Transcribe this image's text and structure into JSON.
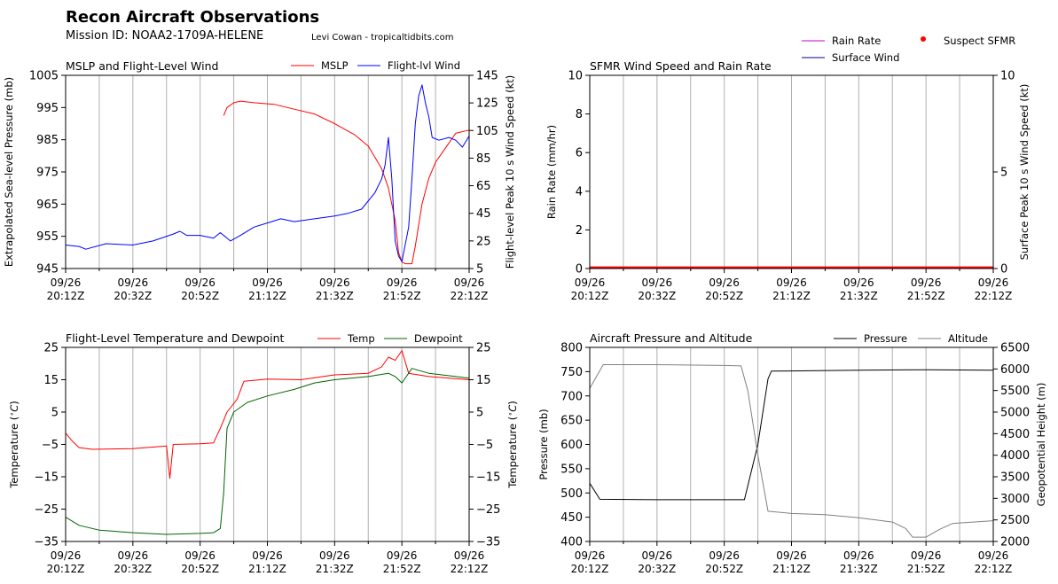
{
  "header": {
    "title": "Recon Aircraft Observations",
    "mission": "Mission ID: NOAA2-1709A-HELENE",
    "credit": "Levi Cowan - tropicaltidbits.com"
  },
  "colors": {
    "mslp": "#ff0000",
    "wind": "#0000ff",
    "temp": "#ff0000",
    "dewpoint": "#006400",
    "rain": "#c000c0",
    "surface_wind": "#00008b",
    "suspect": "#ff0000",
    "pressure": "#000000",
    "altitude": "#808080",
    "grid": "#b0b0b0"
  },
  "x_ticks": [
    [
      "09/26",
      "20:12Z"
    ],
    [
      "09/26",
      "20:32Z"
    ],
    [
      "09/26",
      "20:52Z"
    ],
    [
      "09/26",
      "21:12Z"
    ],
    [
      "09/26",
      "21:32Z"
    ],
    [
      "09/26",
      "21:52Z"
    ],
    [
      "09/26",
      "22:12Z"
    ]
  ],
  "chart_data": [
    {
      "type": "line",
      "title": "MSLP and Flight-Level Wind",
      "xlabel": "",
      "ylabel": "Extrapolated Sea-level Pressure (mb)",
      "ylabel_right": "Flight-level Peak 10 s Wind Speed (kt)",
      "x_range": [
        "09/26 20:12Z",
        "09/26 22:12Z"
      ],
      "ylim": [
        945,
        1005
      ],
      "yticks": [
        "945",
        "955",
        "965",
        "975",
        "985",
        "995",
        "1005"
      ],
      "ylim_right": [
        5,
        145
      ],
      "yticks_right": [
        "5",
        "25",
        "45",
        "65",
        "85",
        "105",
        "125",
        "145"
      ],
      "legend": [
        "MSLP",
        "Flight-lvl Wind"
      ],
      "legend_position": "top-right",
      "grid": "vertical",
      "series": [
        {
          "name": "MSLP",
          "axis": "left",
          "color": "#ff0000",
          "points": [
            [
              "09/26 20:59Z",
              992.5
            ],
            [
              "09/26 21:00Z",
              995
            ],
            [
              "09/26 21:02Z",
              996.5
            ],
            [
              "09/26 21:04Z",
              997
            ],
            [
              "09/26 21:08Z",
              996.5
            ],
            [
              "09/26 21:14Z",
              996
            ],
            [
              "09/26 21:20Z",
              994.5
            ],
            [
              "09/26 21:26Z",
              993
            ],
            [
              "09/26 21:32Z",
              990
            ],
            [
              "09/26 21:38Z",
              986.5
            ],
            [
              "09/26 21:42Z",
              983
            ],
            [
              "09/26 21:46Z",
              976
            ],
            [
              "09/26 21:48Z",
              970
            ],
            [
              "09/26 21:50Z",
              960
            ],
            [
              "09/26 21:51Z",
              950
            ],
            [
              "09/26 21:52Z",
              947
            ],
            [
              "09/26 21:53Z",
              946.5
            ],
            [
              "09/26 21:55Z",
              946.5
            ],
            [
              "09/26 21:56Z",
              952
            ],
            [
              "09/26 21:58Z",
              965
            ],
            [
              "09/26 22:00Z",
              973
            ],
            [
              "09/26 22:02Z",
              978
            ],
            [
              "09/26 22:04Z",
              981
            ],
            [
              "09/26 22:06Z",
              984
            ],
            [
              "09/26 22:08Z",
              987
            ],
            [
              "09/26 22:12Z",
              988
            ]
          ]
        },
        {
          "name": "Flight-lvl Wind",
          "axis": "right",
          "color": "#0000ff",
          "points": [
            [
              "09/26 20:12Z",
              22
            ],
            [
              "09/26 20:16Z",
              21
            ],
            [
              "09/26 20:18Z",
              19
            ],
            [
              "09/26 20:24Z",
              23
            ],
            [
              "09/26 20:32Z",
              22
            ],
            [
              "09/26 20:38Z",
              25
            ],
            [
              "09/26 20:44Z",
              30
            ],
            [
              "09/26 20:46Z",
              32
            ],
            [
              "09/26 20:48Z",
              29
            ],
            [
              "09/26 20:52Z",
              29
            ],
            [
              "09/26 20:56Z",
              27
            ],
            [
              "09/26 20:58Z",
              31
            ],
            [
              "09/26 21:01Z",
              25
            ],
            [
              "09/26 21:04Z",
              29
            ],
            [
              "09/26 21:08Z",
              35
            ],
            [
              "09/26 21:12Z",
              38
            ],
            [
              "09/26 21:16Z",
              41
            ],
            [
              "09/26 21:20Z",
              39
            ],
            [
              "09/26 21:26Z",
              41
            ],
            [
              "09/26 21:32Z",
              43
            ],
            [
              "09/26 21:36Z",
              45
            ],
            [
              "09/26 21:40Z",
              48
            ],
            [
              "09/26 21:44Z",
              60
            ],
            [
              "09/26 21:46Z",
              70
            ],
            [
              "09/26 21:47Z",
              80
            ],
            [
              "09/26 21:48Z",
              100
            ],
            [
              "09/26 21:49Z",
              70
            ],
            [
              "09/26 21:50Z",
              25
            ],
            [
              "09/26 21:51Z",
              14
            ],
            [
              "09/26 21:52Z",
              10
            ],
            [
              "09/26 21:54Z",
              35
            ],
            [
              "09/26 21:55Z",
              70
            ],
            [
              "09/26 21:56Z",
              110
            ],
            [
              "09/26 21:57Z",
              130
            ],
            [
              "09/26 21:58Z",
              138
            ],
            [
              "09/26 21:59Z",
              125
            ],
            [
              "09/26 22:00Z",
              115
            ],
            [
              "09/26 22:01Z",
              100
            ],
            [
              "09/26 22:03Z",
              98
            ],
            [
              "09/26 22:06Z",
              100
            ],
            [
              "09/26 22:08Z",
              98
            ],
            [
              "09/26 22:10Z",
              93
            ],
            [
              "09/26 22:12Z",
              101
            ]
          ]
        }
      ]
    },
    {
      "type": "line",
      "title": "SFMR Wind Speed and Rain Rate",
      "xlabel": "",
      "ylabel": "Rain Rate (mm/hr)",
      "ylabel_right": "Surface Peak 10 s Wind Speed (kt)",
      "x_range": [
        "09/26 20:12Z",
        "09/26 22:12Z"
      ],
      "ylim": [
        0,
        10
      ],
      "yticks": [
        "0",
        "2",
        "4",
        "6",
        "8",
        "10"
      ],
      "ylim_right": [
        0,
        10
      ],
      "yticks_right": [
        "0",
        "5",
        "10"
      ],
      "legend": [
        "Rain Rate",
        "Surface Wind",
        "Suspect SFMR"
      ],
      "legend_position": "above top-right",
      "grid": "vertical",
      "series": [
        {
          "name": "Suspect SFMR",
          "axis": "right",
          "color": "#ff0000",
          "points": [
            [
              "09/26 20:12Z",
              0.05
            ],
            [
              "09/26 22:12Z",
              0.05
            ]
          ]
        }
      ]
    },
    {
      "type": "line",
      "title": "Flight-Level Temperature and Dewpoint",
      "xlabel": "",
      "ylabel": "Temperature ($^\\circ$C)",
      "ylabel_right": "Temperature ($^\\circ$C)",
      "x_range": [
        "09/26 20:12Z",
        "09/26 22:12Z"
      ],
      "ylim": [
        -35,
        25
      ],
      "yticks": [
        "−35",
        "−25",
        "−15",
        "−5",
        "5",
        "15",
        "25"
      ],
      "legend": [
        "Temp",
        "Dewpoint"
      ],
      "legend_position": "top-right",
      "grid": "vertical",
      "series": [
        {
          "name": "Temp",
          "axis": "left",
          "color": "#ff0000",
          "points": [
            [
              "09/26 20:12Z",
              -1.5
            ],
            [
              "09/26 20:14Z",
              -4
            ],
            [
              "09/26 20:16Z",
              -6
            ],
            [
              "09/26 20:20Z",
              -6.5
            ],
            [
              "09/26 20:32Z",
              -6.3
            ],
            [
              "09/26 20:42Z",
              -5.5
            ],
            [
              "09/26 20:43Z",
              -15.5
            ],
            [
              "09/26 20:44Z",
              -5
            ],
            [
              "09/26 20:52Z",
              -4.8
            ],
            [
              "09/26 20:56Z",
              -4.5
            ],
            [
              "09/26 20:58Z",
              0
            ],
            [
              "09/26 21:00Z",
              5
            ],
            [
              "09/26 21:03Z",
              9
            ],
            [
              "09/26 21:05Z",
              14.5
            ],
            [
              "09/26 21:12Z",
              15.2
            ],
            [
              "09/26 21:22Z",
              15
            ],
            [
              "09/26 21:32Z",
              16.5
            ],
            [
              "09/26 21:42Z",
              17
            ],
            [
              "09/26 21:46Z",
              19
            ],
            [
              "09/26 21:48Z",
              22
            ],
            [
              "09/26 21:50Z",
              21
            ],
            [
              "09/26 21:52Z",
              24
            ],
            [
              "09/26 21:54Z",
              17
            ],
            [
              "09/26 22:00Z",
              16
            ],
            [
              "09/26 22:12Z",
              15
            ]
          ]
        },
        {
          "name": "Dewpoint",
          "axis": "left",
          "color": "#006400",
          "points": [
            [
              "09/26 20:12Z",
              -27.5
            ],
            [
              "09/26 20:16Z",
              -30
            ],
            [
              "09/26 20:22Z",
              -31.5
            ],
            [
              "09/26 20:32Z",
              -32.3
            ],
            [
              "09/26 20:42Z",
              -32.8
            ],
            [
              "09/26 20:52Z",
              -32.5
            ],
            [
              "09/26 20:56Z",
              -32.3
            ],
            [
              "09/26 20:58Z",
              -31
            ],
            [
              "09/26 20:59Z",
              -20
            ],
            [
              "09/26 21:00Z",
              0
            ],
            [
              "09/26 21:02Z",
              5
            ],
            [
              "09/26 21:06Z",
              8
            ],
            [
              "09/26 21:12Z",
              10
            ],
            [
              "09/26 21:20Z",
              12
            ],
            [
              "09/26 21:26Z",
              14
            ],
            [
              "09/26 21:32Z",
              15
            ],
            [
              "09/26 21:42Z",
              16
            ],
            [
              "09/26 21:48Z",
              17
            ],
            [
              "09/26 21:50Z",
              16
            ],
            [
              "09/26 21:52Z",
              14
            ],
            [
              "09/26 21:55Z",
              18.5
            ],
            [
              "09/26 22:00Z",
              17
            ],
            [
              "09/26 22:12Z",
              15.5
            ]
          ]
        }
      ]
    },
    {
      "type": "line",
      "title": "Aircraft Pressure and Altitude",
      "xlabel": "",
      "ylabel": "Pressure (mb)",
      "ylabel_right": "Geopotential Height (m)",
      "x_range": [
        "09/26 20:12Z",
        "09/26 22:12Z"
      ],
      "ylim": [
        400,
        800
      ],
      "yticks": [
        "400",
        "450",
        "500",
        "550",
        "600",
        "650",
        "700",
        "750",
        "800"
      ],
      "ylim_right": [
        2000,
        6500
      ],
      "yticks_right": [
        "2000",
        "2500",
        "3000",
        "3500",
        "4000",
        "4500",
        "5000",
        "5500",
        "6000",
        "6500"
      ],
      "legend": [
        "Pressure",
        "Altitude"
      ],
      "legend_position": "top-right",
      "grid": "vertical",
      "series": [
        {
          "name": "Pressure",
          "axis": "left",
          "color": "#000000",
          "points": [
            [
              "09/26 20:12Z",
              520
            ],
            [
              "09/26 20:15Z",
              487
            ],
            [
              "09/26 20:32Z",
              486
            ],
            [
              "09/26 20:52Z",
              486
            ],
            [
              "09/26 20:58Z",
              486
            ],
            [
              "09/26 21:02Z",
              600
            ],
            [
              "09/26 21:05Z",
              735
            ],
            [
              "09/26 21:06Z",
              751
            ],
            [
              "09/26 21:32Z",
              753
            ],
            [
              "09/26 21:52Z",
              754
            ],
            [
              "09/26 22:12Z",
              753
            ]
          ]
        },
        {
          "name": "Altitude",
          "axis": "right",
          "color": "#808080",
          "points": [
            [
              "09/26 20:12Z",
              5550
            ],
            [
              "09/26 20:16Z",
              6100
            ],
            [
              "09/26 20:32Z",
              6100
            ],
            [
              "09/26 20:52Z",
              6080
            ],
            [
              "09/26 20:57Z",
              6070
            ],
            [
              "09/26 20:59Z",
              5500
            ],
            [
              "09/26 21:02Z",
              4000
            ],
            [
              "09/26 21:05Z",
              2700
            ],
            [
              "09/26 21:12Z",
              2650
            ],
            [
              "09/26 21:22Z",
              2620
            ],
            [
              "09/26 21:32Z",
              2550
            ],
            [
              "09/26 21:42Z",
              2450
            ],
            [
              "09/26 21:46Z",
              2300
            ],
            [
              "09/26 21:48Z",
              2100
            ],
            [
              "09/26 21:52Z",
              2100
            ],
            [
              "09/26 21:56Z",
              2280
            ],
            [
              "09/26 22:00Z",
              2420
            ],
            [
              "09/26 22:12Z",
              2480
            ]
          ]
        }
      ]
    }
  ]
}
